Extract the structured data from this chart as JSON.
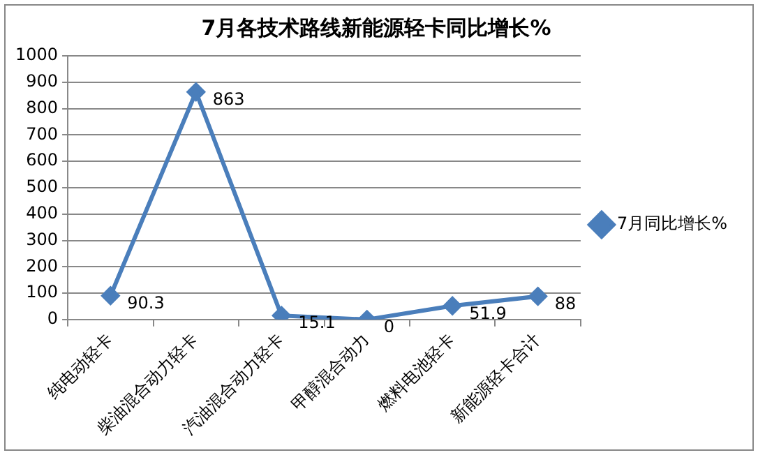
{
  "chart_data": {
    "type": "line",
    "title": "7月各技术路线新能源轻卡同比增长%",
    "categories": [
      "纯电动轻卡",
      "柴油混合动力轻卡",
      "汽油混合动力轻卡",
      "甲醇混合动力",
      "燃料电池轻卡",
      "新能源轻卡合计"
    ],
    "series": [
      {
        "name": "7月同比增长%",
        "color": "#4a7ebb",
        "values": [
          90.3,
          863,
          15.1,
          0,
          51.9,
          88
        ]
      }
    ],
    "ylim": [
      0,
      1000
    ],
    "yticks": [
      0,
      100,
      200,
      300,
      400,
      500,
      600,
      700,
      800,
      900,
      1000
    ],
    "grid": "y",
    "legend": "right",
    "marker": "diamond",
    "line_style": "solid",
    "data_labels": true
  }
}
